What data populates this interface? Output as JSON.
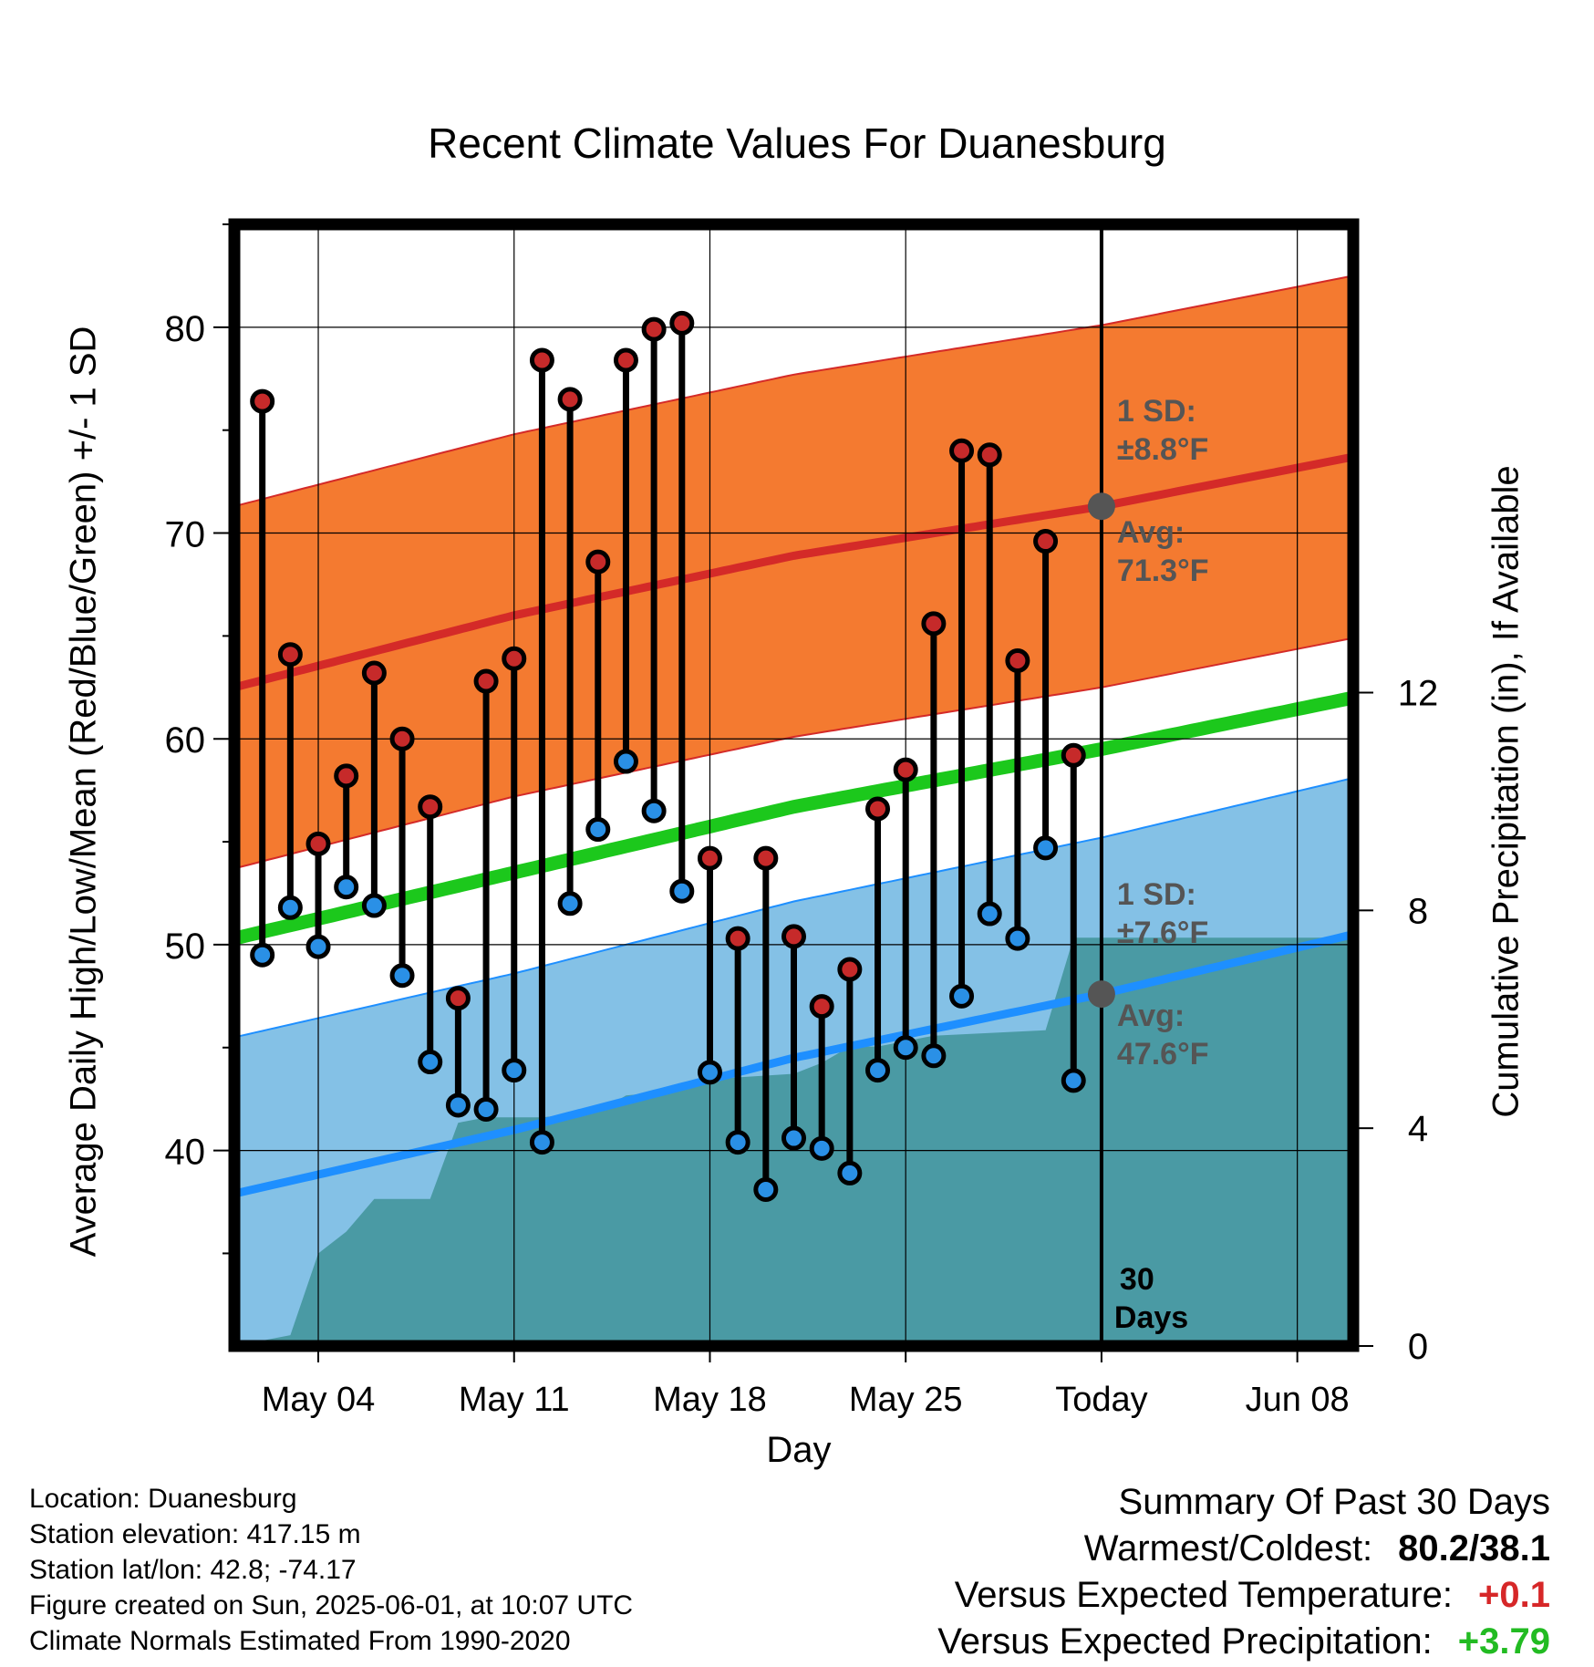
{
  "chart_data": {
    "type": "line",
    "title": "Recent Climate Values For Duanesburg",
    "xlabel": "Day",
    "ylabel": "Average Daily High/Low/Mean (Red/Blue/Green) +/- 1 SD",
    "y2label": "Cumulative Precipitation (in), If Available",
    "xlim": [
      "2025-05-01",
      "2025-06-10"
    ],
    "ylim": [
      30.5,
      85
    ],
    "y2lim": [
      0,
      20.6
    ],
    "x_ticks": [
      {
        "date": "2025-05-04",
        "label": "May 04"
      },
      {
        "date": "2025-05-11",
        "label": "May 11"
      },
      {
        "date": "2025-05-18",
        "label": "May 18"
      },
      {
        "date": "2025-05-25",
        "label": "May 25"
      },
      {
        "date": "2025-06-01",
        "label": "Today"
      },
      {
        "date": "2025-06-08",
        "label": "Jun 08"
      }
    ],
    "y_ticks": [
      40,
      50,
      60,
      70,
      80
    ],
    "y2_ticks": [
      0,
      4,
      8,
      12
    ],
    "grid": true,
    "normals": {
      "dates": [
        "2025-05-01",
        "2025-05-11",
        "2025-05-21",
        "2025-06-01",
        "2025-06-10"
      ],
      "high_avg": [
        62.5,
        66.0,
        68.9,
        71.3,
        73.7
      ],
      "high_sd": 8.8,
      "low_avg": [
        37.9,
        41.0,
        44.5,
        47.6,
        50.5
      ],
      "low_sd": 7.6,
      "mean_avg": [
        50.3,
        53.5,
        56.7,
        59.5,
        62.0
      ]
    },
    "daily": {
      "dates": [
        "2025-05-02",
        "2025-05-03",
        "2025-05-04",
        "2025-05-05",
        "2025-05-06",
        "2025-05-07",
        "2025-05-08",
        "2025-05-09",
        "2025-05-10",
        "2025-05-11",
        "2025-05-12",
        "2025-05-13",
        "2025-05-14",
        "2025-05-15",
        "2025-05-16",
        "2025-05-17",
        "2025-05-18",
        "2025-05-19",
        "2025-05-20",
        "2025-05-21",
        "2025-05-22",
        "2025-05-23",
        "2025-05-24",
        "2025-05-25",
        "2025-05-26",
        "2025-05-27",
        "2025-05-28",
        "2025-05-29",
        "2025-05-30",
        "2025-05-31"
      ],
      "high": [
        76.4,
        64.1,
        54.9,
        58.2,
        63.2,
        60.0,
        56.7,
        47.4,
        62.8,
        63.9,
        78.4,
        76.5,
        68.6,
        78.4,
        79.9,
        80.2,
        54.2,
        50.3,
        54.2,
        50.4,
        47.0,
        48.8,
        56.6,
        58.5,
        65.6,
        74.0,
        73.8,
        63.8,
        69.6,
        59.2
      ],
      "low": [
        49.5,
        51.8,
        49.9,
        52.8,
        51.9,
        48.5,
        44.3,
        42.2,
        42.0,
        43.9,
        40.4,
        52.0,
        55.6,
        58.9,
        56.5,
        52.6,
        43.8,
        40.4,
        38.1,
        40.6,
        40.1,
        38.9,
        43.9,
        45.0,
        44.6,
        47.5,
        51.5,
        50.3,
        54.7,
        43.4
      ]
    },
    "precip_cumulative": {
      "dates": [
        "2025-05-01",
        "2025-05-03",
        "2025-05-04",
        "2025-05-05",
        "2025-05-06",
        "2025-05-08",
        "2025-05-09",
        "2025-05-10",
        "2025-05-12",
        "2025-05-14",
        "2025-05-15",
        "2025-05-17",
        "2025-05-18",
        "2025-05-21",
        "2025-05-22",
        "2025-05-23",
        "2025-05-24",
        "2025-05-26",
        "2025-05-30",
        "2025-05-31",
        "2025-06-10"
      ],
      "values": [
        0,
        0.2,
        1.7,
        2.1,
        2.7,
        2.7,
        4.1,
        4.2,
        4.2,
        4.3,
        4.6,
        4.7,
        4.9,
        5.0,
        5.2,
        5.5,
        5.5,
        5.7,
        5.8,
        7.5,
        7.5
      ]
    },
    "annotations": {
      "high_sd": {
        "line1": "1 SD:",
        "line2": "±8.8°F"
      },
      "high_avg": {
        "line1": "Avg:",
        "line2": "71.3°F"
      },
      "low_sd": {
        "line1": "1 SD:",
        "line2": "±7.6°F"
      },
      "low_avg": {
        "line1": "Avg:",
        "line2": "47.6°F"
      },
      "days": {
        "line1": "30",
        "line2": "Days"
      }
    },
    "colors": {
      "high_band": "#f47a30",
      "high_line": "#d42a28",
      "low_band": "#84c1e6",
      "low_line": "#1e8fff",
      "mean_line": "#1cc81c",
      "precip": "#4a9aa4",
      "high_dot": "#c62a2a",
      "low_dot": "#2a90e6"
    }
  },
  "footer": {
    "location": "Location: Duanesburg",
    "elevation": "Station elevation: 417.15 m",
    "latlon": "Station lat/lon: 42.8; -74.17",
    "created": "Figure created on Sun, 2025-06-01, at 10:07 UTC",
    "normals": "Climate Normals Estimated From 1990-2020"
  },
  "summary": {
    "title": "Summary Of Past 30 Days",
    "warmest_label": "Warmest/Coldest:",
    "warmest_value": "80.2/38.1",
    "temp_label": "Versus Expected Temperature:",
    "temp_value": "+0.1",
    "precip_label": "Versus Expected Precipitation:",
    "precip_value": "+3.79"
  }
}
